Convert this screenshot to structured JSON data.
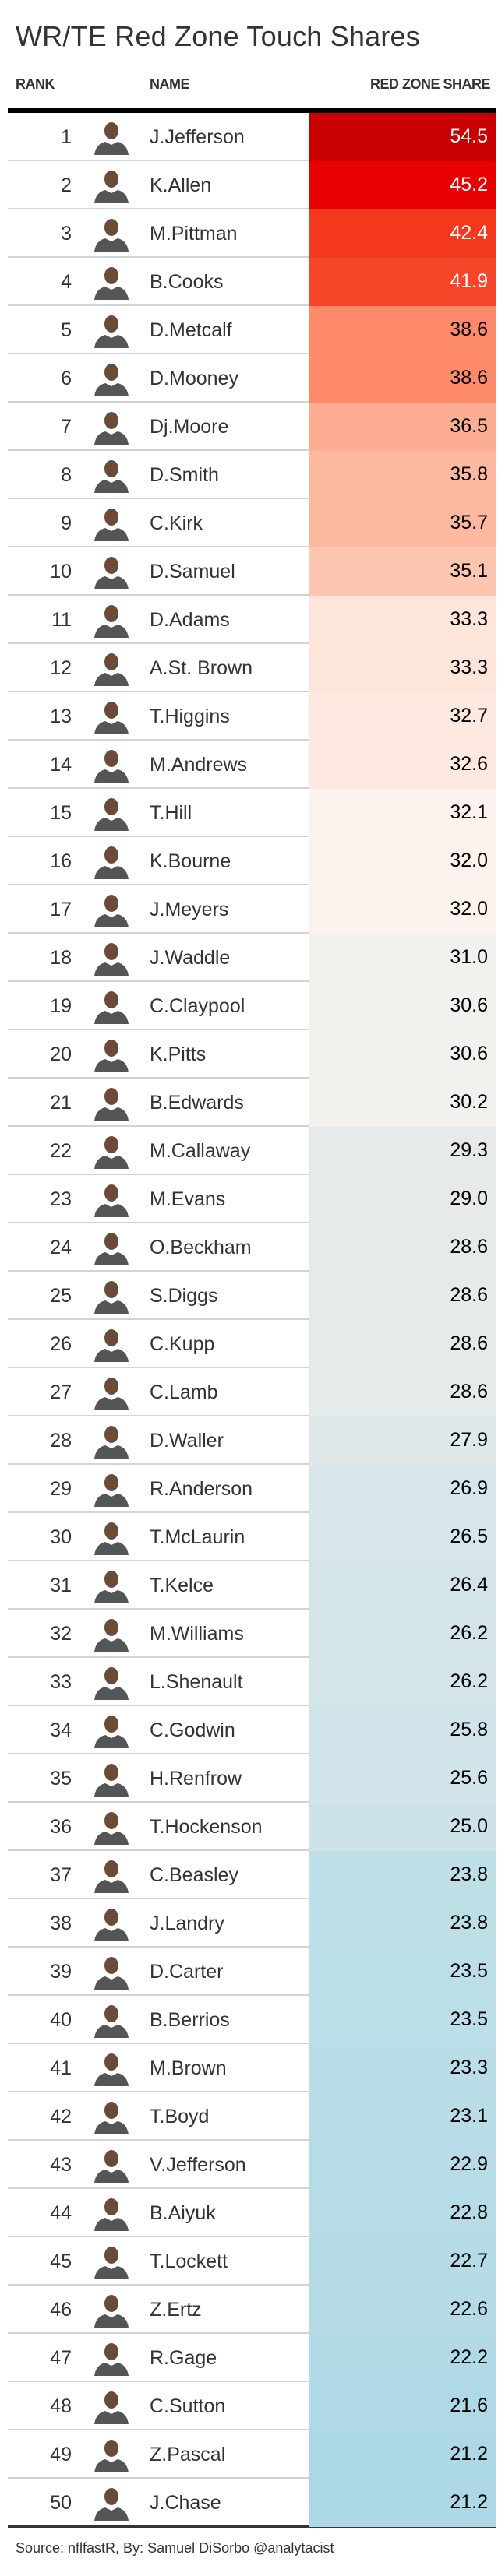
{
  "title": "WR/TE Red Zone Touch Shares",
  "headers": {
    "rank": "RANK",
    "name": "NAME",
    "share": "RED ZONE SHARE"
  },
  "source": "Source: nflfastR, By: Samuel DiSorbo @analytacist",
  "chart_data": {
    "type": "table",
    "title": "WR/TE Red Zone Touch Shares",
    "columns": [
      "RANK",
      "NAME",
      "RED ZONE SHARE"
    ],
    "rows": [
      {
        "rank": "1",
        "name": "J.Jefferson",
        "share": "54.5",
        "color": "#c80000",
        "text": "#ffffff"
      },
      {
        "rank": "2",
        "name": "K.Allen",
        "share": "45.2",
        "color": "#e60000",
        "text": "#ffffff"
      },
      {
        "rank": "3",
        "name": "M.Pittman",
        "share": "42.4",
        "color": "#f4381e",
        "text": "#ffffff"
      },
      {
        "rank": "4",
        "name": "B.Cooks",
        "share": "41.9",
        "color": "#f6462a",
        "text": "#ffffff"
      },
      {
        "rank": "5",
        "name": "D.Metcalf",
        "share": "38.6",
        "color": "#fe8a6b",
        "text": "#000000"
      },
      {
        "rank": "6",
        "name": "D.Mooney",
        "share": "38.6",
        "color": "#fe8a6b",
        "text": "#000000"
      },
      {
        "rank": "7",
        "name": "Dj.Moore",
        "share": "36.5",
        "color": "#fdae92",
        "text": "#000000"
      },
      {
        "rank": "8",
        "name": "D.Smith",
        "share": "35.8",
        "color": "#fcb9a0",
        "text": "#000000"
      },
      {
        "rank": "9",
        "name": "C.Kirk",
        "share": "35.7",
        "color": "#fcb9a0",
        "text": "#000000"
      },
      {
        "rank": "10",
        "name": "D.Samuel",
        "share": "35.1",
        "color": "#fdc6b1",
        "text": "#000000"
      },
      {
        "rank": "11",
        "name": "D.Adams",
        "share": "33.3",
        "color": "#fde5da",
        "text": "#000000"
      },
      {
        "rank": "12",
        "name": "A.St. Brown",
        "share": "33.3",
        "color": "#fde5da",
        "text": "#000000"
      },
      {
        "rank": "13",
        "name": "T.Higgins",
        "share": "32.7",
        "color": "#fde9e0",
        "text": "#000000"
      },
      {
        "rank": "14",
        "name": "M.Andrews",
        "share": "32.6",
        "color": "#fde9e0",
        "text": "#000000"
      },
      {
        "rank": "15",
        "name": "T.Hill",
        "share": "32.1",
        "color": "#fdf3ee",
        "text": "#000000"
      },
      {
        "rank": "16",
        "name": "K.Bourne",
        "share": "32.0",
        "color": "#fdf3ee",
        "text": "#000000"
      },
      {
        "rank": "17",
        "name": "J.Meyers",
        "share": "32.0",
        "color": "#fdf3ee",
        "text": "#000000"
      },
      {
        "rank": "18",
        "name": "J.Waddle",
        "share": "31.0",
        "color": "#f2f1ed",
        "text": "#000000"
      },
      {
        "rank": "19",
        "name": "C.Claypool",
        "share": "30.6",
        "color": "#f2f1ed",
        "text": "#000000"
      },
      {
        "rank": "20",
        "name": "K.Pitts",
        "share": "30.6",
        "color": "#f2f1ed",
        "text": "#000000"
      },
      {
        "rank": "21",
        "name": "B.Edwards",
        "share": "30.2",
        "color": "#f2f1ed",
        "text": "#000000"
      },
      {
        "rank": "22",
        "name": "M.Callaway",
        "share": "29.3",
        "color": "#e6eaea",
        "text": "#000000"
      },
      {
        "rank": "23",
        "name": "M.Evans",
        "share": "29.0",
        "color": "#e6eaea",
        "text": "#000000"
      },
      {
        "rank": "24",
        "name": "O.Beckham",
        "share": "28.6",
        "color": "#e5eaea",
        "text": "#000000"
      },
      {
        "rank": "25",
        "name": "S.Diggs",
        "share": "28.6",
        "color": "#e5eaea",
        "text": "#000000"
      },
      {
        "rank": "26",
        "name": "C.Kupp",
        "share": "28.6",
        "color": "#e5eaea",
        "text": "#000000"
      },
      {
        "rank": "27",
        "name": "C.Lamb",
        "share": "28.6",
        "color": "#e5eaea",
        "text": "#000000"
      },
      {
        "rank": "28",
        "name": "D.Waller",
        "share": "27.9",
        "color": "#e0e8ea",
        "text": "#000000"
      },
      {
        "rank": "29",
        "name": "R.Anderson",
        "share": "26.9",
        "color": "#d6e6ea",
        "text": "#000000"
      },
      {
        "rank": "30",
        "name": "T.McLaurin",
        "share": "26.5",
        "color": "#d6e6ea",
        "text": "#000000"
      },
      {
        "rank": "31",
        "name": "T.Kelce",
        "share": "26.4",
        "color": "#d4e5ea",
        "text": "#000000"
      },
      {
        "rank": "32",
        "name": "M.Williams",
        "share": "26.2",
        "color": "#d4e5ea",
        "text": "#000000"
      },
      {
        "rank": "33",
        "name": "L.Shenault",
        "share": "26.2",
        "color": "#d4e5ea",
        "text": "#000000"
      },
      {
        "rank": "34",
        "name": "C.Godwin",
        "share": "25.8",
        "color": "#d1e4e9",
        "text": "#000000"
      },
      {
        "rank": "35",
        "name": "H.Renfrow",
        "share": "25.6",
        "color": "#d1e4e9",
        "text": "#000000"
      },
      {
        "rank": "36",
        "name": "T.Hockenson",
        "share": "25.0",
        "color": "#cde3e9",
        "text": "#000000"
      },
      {
        "rank": "37",
        "name": "C.Beasley",
        "share": "23.8",
        "color": "#bfdfe7",
        "text": "#000000"
      },
      {
        "rank": "38",
        "name": "J.Landry",
        "share": "23.8",
        "color": "#bfdfe7",
        "text": "#000000"
      },
      {
        "rank": "39",
        "name": "D.Carter",
        "share": "23.5",
        "color": "#bcdee7",
        "text": "#000000"
      },
      {
        "rank": "40",
        "name": "B.Berrios",
        "share": "23.5",
        "color": "#bcdee7",
        "text": "#000000"
      },
      {
        "rank": "41",
        "name": "M.Brown",
        "share": "23.3",
        "color": "#badde7",
        "text": "#000000"
      },
      {
        "rank": "42",
        "name": "T.Boyd",
        "share": "23.1",
        "color": "#b9dde7",
        "text": "#000000"
      },
      {
        "rank": "43",
        "name": "V.Jefferson",
        "share": "22.9",
        "color": "#b7dce7",
        "text": "#000000"
      },
      {
        "rank": "44",
        "name": "B.Aiyuk",
        "share": "22.8",
        "color": "#b6dce7",
        "text": "#000000"
      },
      {
        "rank": "45",
        "name": "T.Lockett",
        "share": "22.7",
        "color": "#b5dbe6",
        "text": "#000000"
      },
      {
        "rank": "46",
        "name": "Z.Ertz",
        "share": "22.6",
        "color": "#b4dbe6",
        "text": "#000000"
      },
      {
        "rank": "47",
        "name": "R.Gage",
        "share": "22.2",
        "color": "#b2dae6",
        "text": "#000000"
      },
      {
        "rank": "48",
        "name": "C.Sutton",
        "share": "21.6",
        "color": "#afd9e6",
        "text": "#000000"
      },
      {
        "rank": "49",
        "name": "Z.Pascal",
        "share": "21.2",
        "color": "#add8e6",
        "text": "#000000"
      },
      {
        "rank": "50",
        "name": "J.Chase",
        "share": "21.2",
        "color": "#add8e6",
        "text": "#000000"
      }
    ]
  }
}
